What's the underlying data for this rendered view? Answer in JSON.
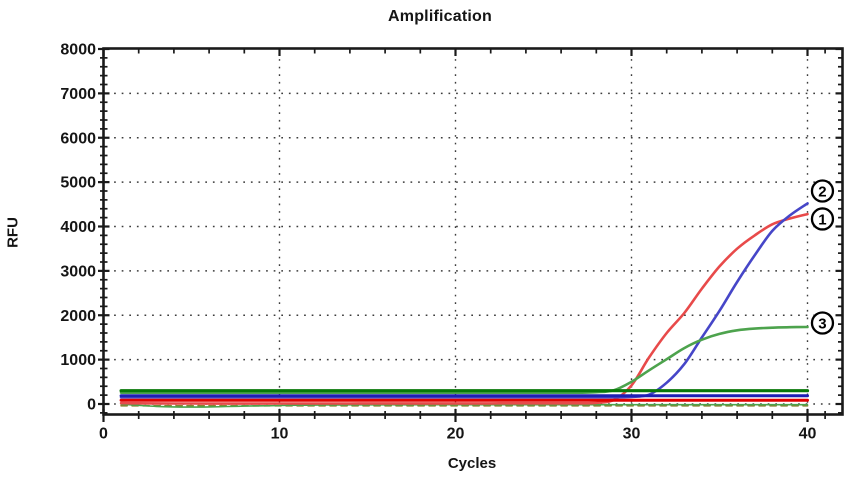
{
  "title": "Amplification",
  "axes": {
    "x_label": "Cycles",
    "y_label": "RFU",
    "x_tick_labels": [
      "0",
      "10",
      "20",
      "30",
      "40"
    ],
    "x_ticks": [
      0,
      10,
      20,
      30,
      40
    ],
    "x_minor_ticks": [
      2,
      4,
      6,
      8,
      12,
      14,
      16,
      18,
      22,
      24,
      26,
      28,
      32,
      34,
      36,
      38,
      41
    ],
    "x_range": [
      0,
      42
    ],
    "y_tick_labels": [
      "0",
      "1000",
      "2000",
      "3000",
      "4000",
      "5000",
      "6000",
      "7000",
      "8000"
    ],
    "y_ticks": [
      0,
      1000,
      2000,
      3000,
      4000,
      5000,
      6000,
      7000,
      8000
    ],
    "y_minor_step": 200,
    "y_range": [
      -237,
      8000
    ],
    "grid_style": "dotted",
    "gridline_color": "#3c3c3c",
    "frame_color": "#1a1a1a",
    "text_color": "#151515"
  },
  "chart_data": {
    "type": "line",
    "title": "Amplification",
    "xlabel": "Cycles",
    "ylabel": "RFU",
    "xlim": [
      0,
      42
    ],
    "ylim": [
      -237,
      8000
    ],
    "grid": "dotted",
    "legend": "none",
    "x": [
      1,
      2,
      3,
      4,
      5,
      6,
      7,
      8,
      9,
      10,
      11,
      12,
      13,
      14,
      15,
      16,
      17,
      18,
      19,
      20,
      21,
      22,
      23,
      24,
      25,
      26,
      27,
      28,
      29,
      30,
      31,
      32,
      33,
      34,
      35,
      36,
      37,
      38,
      39,
      40
    ],
    "series": [
      {
        "name": "baseline-dashed-olive",
        "color": "#8a8230",
        "width": 1.8,
        "dash": "6 5",
        "constant": -40
      },
      {
        "name": "baseline-green-dip",
        "color": "#4da34d",
        "width": 1.6,
        "dash": "",
        "values": [
          -5,
          -30,
          -55,
          -65,
          -70,
          -65,
          -57,
          -48,
          -40,
          -34,
          -28,
          -24,
          -21,
          -19,
          -18,
          -17,
          -17,
          -16,
          -16,
          -16,
          -16,
          -16,
          -16,
          -16,
          -16,
          -16,
          -16,
          -16,
          -16,
          -16,
          -16,
          -16,
          -16,
          -16,
          -16,
          -16,
          -16,
          -16,
          -16,
          -16
        ]
      },
      {
        "name": "sample-1-red-sigmoid",
        "label": "1",
        "color": "#e84a4a",
        "width": 2.6,
        "dash": "",
        "values": [
          18,
          16,
          14,
          12,
          11,
          10,
          10,
          10,
          10,
          11,
          11,
          12,
          12,
          12,
          13,
          13,
          13,
          13,
          14,
          14,
          14,
          14,
          15,
          15,
          15,
          16,
          16,
          25,
          90,
          420,
          1050,
          1600,
          2050,
          2600,
          3100,
          3500,
          3800,
          4050,
          4180,
          4280
        ]
      },
      {
        "name": "sample-2-blue-sigmoid",
        "label": "2",
        "color": "#4646c8",
        "width": 2.6,
        "dash": "",
        "values": [
          150,
          150,
          150,
          150,
          150,
          150,
          150,
          150,
          150,
          150,
          150,
          150,
          150,
          150,
          150,
          150,
          150,
          150,
          150,
          150,
          150,
          150,
          150,
          150,
          150,
          150,
          150,
          150,
          150,
          160,
          210,
          480,
          900,
          1500,
          2100,
          2750,
          3350,
          3900,
          4250,
          4520
        ]
      },
      {
        "name": "sample-3-green-sigmoid",
        "label": "3",
        "color": "#4da34d",
        "width": 2.6,
        "dash": "",
        "values": [
          255,
          255,
          255,
          255,
          255,
          255,
          255,
          255,
          255,
          255,
          255,
          255,
          255,
          255,
          255,
          255,
          255,
          255,
          255,
          255,
          255,
          255,
          255,
          255,
          255,
          255,
          255,
          265,
          310,
          500,
          760,
          1010,
          1260,
          1450,
          1580,
          1660,
          1700,
          1720,
          1730,
          1735
        ]
      },
      {
        "name": "flat-line-red",
        "color": "#e00000",
        "width": 3,
        "dash": "",
        "constant": 85
      },
      {
        "name": "flat-line-blue",
        "color": "#1e1eb4",
        "width": 3,
        "dash": "",
        "constant": 185
      },
      {
        "name": "flat-line-dark-green",
        "color": "#087808",
        "width": 3.2,
        "dash": "",
        "constant": 300
      }
    ],
    "annotations": [
      {
        "name": "curve-label-2",
        "digit": "2",
        "cycle": 40.85,
        "rfu": 4800
      },
      {
        "name": "curve-label-1",
        "digit": "1",
        "cycle": 40.85,
        "rfu": 4170
      },
      {
        "name": "curve-label-3",
        "digit": "3",
        "cycle": 40.85,
        "rfu": 1825
      }
    ],
    "annotation_style": {
      "circle_fill": "#ffffff",
      "circle_stroke": "#000000",
      "radius": 10.5,
      "stroke_width": 2.3
    }
  }
}
